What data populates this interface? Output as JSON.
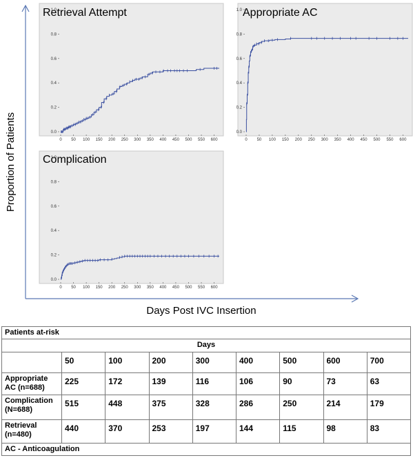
{
  "figure": {
    "y_axis_label": "Proportion of Patients",
    "x_axis_label": "Days Post IVC Insertion"
  },
  "chart_data": [
    {
      "type": "line",
      "title": "Retrieval Attempt",
      "xlim": [
        0,
        620
      ],
      "ylim": [
        0,
        1.0
      ],
      "x_ticks": [
        0,
        50,
        100,
        150,
        200,
        250,
        300,
        350,
        400,
        450,
        500,
        550,
        600
      ],
      "y_ticks": [
        0.0,
        0.2,
        0.4,
        0.6,
        0.8,
        1.0
      ],
      "series": [
        {
          "step": true,
          "x": [
            0,
            10,
            20,
            30,
            40,
            50,
            60,
            70,
            80,
            90,
            100,
            110,
            120,
            130,
            140,
            150,
            160,
            170,
            180,
            190,
            200,
            210,
            220,
            230,
            240,
            250,
            260,
            270,
            280,
            290,
            300,
            310,
            320,
            330,
            340,
            350,
            360,
            370,
            380,
            400,
            450,
            500,
            530,
            540,
            560,
            600,
            620
          ],
          "y": [
            0,
            0.02,
            0.03,
            0.04,
            0.05,
            0.06,
            0.07,
            0.08,
            0.09,
            0.1,
            0.11,
            0.12,
            0.14,
            0.16,
            0.18,
            0.2,
            0.24,
            0.27,
            0.29,
            0.3,
            0.31,
            0.33,
            0.35,
            0.37,
            0.38,
            0.39,
            0.4,
            0.41,
            0.42,
            0.43,
            0.43,
            0.44,
            0.45,
            0.45,
            0.47,
            0.48,
            0.49,
            0.49,
            0.49,
            0.5,
            0.5,
            0.5,
            0.51,
            0.51,
            0.52,
            0.52,
            0.52
          ],
          "censored": [
            2,
            5,
            8,
            12,
            15,
            18,
            22,
            25,
            28,
            32,
            35,
            38,
            45,
            52,
            58,
            65,
            72,
            78,
            85,
            90,
            95,
            100,
            105,
            115,
            125,
            135,
            148,
            158,
            168,
            178,
            190,
            205,
            218,
            232,
            245,
            258,
            270,
            282,
            295,
            305,
            318,
            330,
            345,
            358,
            372,
            388,
            402,
            418,
            430,
            445,
            455,
            465,
            480,
            495,
            545,
            600,
            610
          ]
        }
      ]
    },
    {
      "type": "line",
      "title": "Appropriate AC",
      "xlim": [
        0,
        620
      ],
      "ylim": [
        0,
        1.0
      ],
      "x_ticks": [
        0,
        50,
        100,
        150,
        200,
        250,
        300,
        350,
        400,
        450,
        500,
        550,
        600
      ],
      "y_ticks": [
        0.0,
        0.2,
        0.4,
        0.6,
        0.8,
        1.0
      ],
      "series": [
        {
          "step": true,
          "x": [
            0,
            1,
            2,
            4,
            6,
            8,
            10,
            12,
            14,
            17,
            20,
            25,
            30,
            40,
            50,
            60,
            70,
            90,
            110,
            150,
            170,
            200,
            300,
            400,
            500,
            620
          ],
          "y": [
            0,
            0.1,
            0.23,
            0.3,
            0.4,
            0.48,
            0.53,
            0.58,
            0.62,
            0.65,
            0.67,
            0.7,
            0.71,
            0.72,
            0.73,
            0.74,
            0.745,
            0.75,
            0.755,
            0.76,
            0.765,
            0.765,
            0.765,
            0.765,
            0.765,
            0.765
          ],
          "censored": [
            2,
            4,
            6,
            8,
            10,
            14,
            17,
            22,
            27,
            33,
            40,
            48,
            58,
            70,
            85,
            100,
            120,
            170,
            250,
            270,
            300,
            330,
            360,
            400,
            420,
            470,
            500,
            550,
            580,
            600
          ]
        }
      ]
    },
    {
      "type": "line",
      "title": "Complication",
      "xlim": [
        0,
        620
      ],
      "ylim": [
        0,
        1.0
      ],
      "x_ticks": [
        0,
        50,
        100,
        150,
        200,
        250,
        300,
        350,
        400,
        450,
        500,
        550,
        600
      ],
      "y_ticks": [
        0.0,
        0.2,
        0.4,
        0.6,
        0.8,
        1.0
      ],
      "series": [
        {
          "step": true,
          "x": [
            0,
            2,
            4,
            6,
            8,
            10,
            12,
            15,
            18,
            20,
            25,
            30,
            35,
            40,
            50,
            60,
            70,
            80,
            90,
            100,
            150,
            200,
            210,
            220,
            230,
            240,
            250,
            300,
            620
          ],
          "y": [
            0,
            0.01,
            0.03,
            0.05,
            0.06,
            0.07,
            0.08,
            0.09,
            0.1,
            0.11,
            0.12,
            0.125,
            0.13,
            0.13,
            0.135,
            0.14,
            0.145,
            0.15,
            0.155,
            0.155,
            0.16,
            0.165,
            0.17,
            0.175,
            0.18,
            0.185,
            0.19,
            0.19,
            0.19
          ],
          "censored": [
            2,
            4,
            6,
            8,
            10,
            12,
            15,
            18,
            22,
            26,
            30,
            35,
            40,
            45,
            55,
            65,
            75,
            85,
            95,
            105,
            115,
            125,
            135,
            145,
            155,
            170,
            185,
            200,
            230,
            240,
            250,
            260,
            270,
            280,
            290,
            300,
            310,
            320,
            330,
            340,
            350,
            365,
            380,
            395,
            410,
            425,
            440,
            455,
            470,
            485,
            500,
            520,
            540,
            560,
            580,
            600,
            615
          ]
        }
      ]
    }
  ],
  "table": {
    "title": "Patients at-risk",
    "days_header": "Days",
    "days": [
      "50",
      "100",
      "200",
      "300",
      "400",
      "500",
      "600",
      "700"
    ],
    "rows": [
      {
        "label": "Appropriate AC (n=688)",
        "values": [
          "225",
          "172",
          "139",
          "116",
          "106",
          "90",
          "73",
          "63"
        ]
      },
      {
        "label": "Complication (N=688)",
        "values": [
          "515",
          "448",
          "375",
          "328",
          "286",
          "250",
          "214",
          "179"
        ]
      },
      {
        "label": "Retrieval (n=480)",
        "values": [
          "440",
          "370",
          "253",
          "197",
          "144",
          "115",
          "98",
          "83"
        ]
      }
    ],
    "footnote": "AC - Anticoagulation"
  },
  "colors": {
    "line": "#3a4fa0",
    "panel_background": "#ebebeb",
    "outer_axes": "#5a78b4"
  }
}
